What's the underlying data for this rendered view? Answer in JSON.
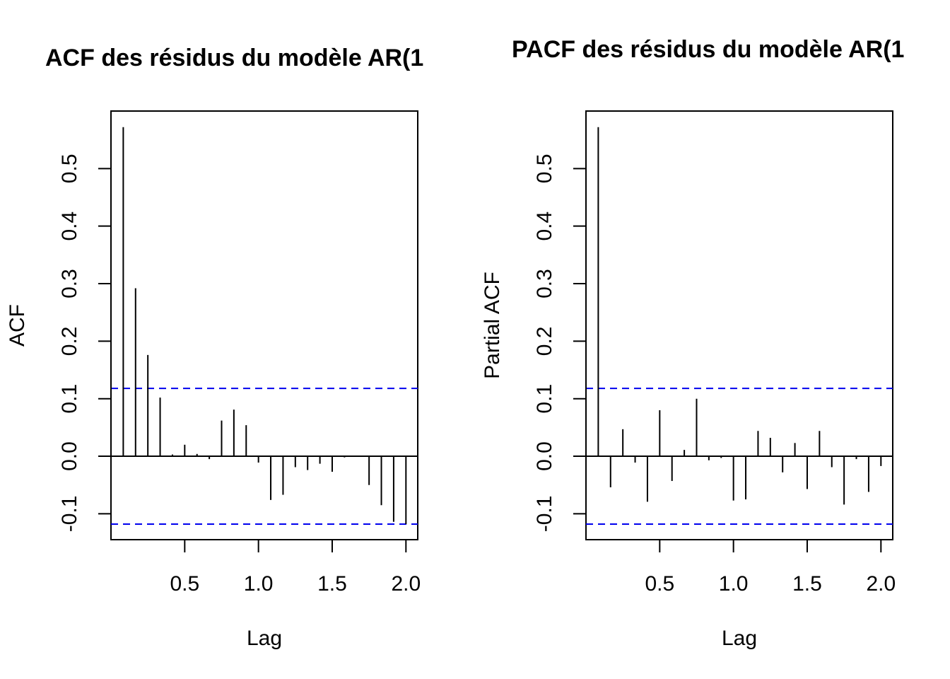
{
  "chart_data": [
    {
      "type": "bar",
      "title": "ACF des résidus du modèle AR(1",
      "xlabel": "Lag",
      "ylabel": "ACF",
      "xlim": [
        0,
        2.08
      ],
      "ylim": [
        -0.145,
        0.6
      ],
      "x_ticks": [
        0.5,
        1.0,
        1.5,
        2.0
      ],
      "x_tick_labels": [
        "0.5",
        "1.0",
        "1.5",
        "2.0"
      ],
      "y_ticks": [
        -0.1,
        0.0,
        0.1,
        0.2,
        0.3,
        0.4,
        0.5
      ],
      "y_tick_labels": [
        "-0.1",
        "0.0",
        "0.1",
        "0.2",
        "0.3",
        "0.4",
        "0.5"
      ],
      "confidence_bound": 0.118,
      "confidence_color": "#0000ee",
      "grid": false,
      "x": [
        0.0833,
        0.1667,
        0.25,
        0.3333,
        0.4167,
        0.5,
        0.5833,
        0.6667,
        0.75,
        0.8333,
        0.9167,
        1.0,
        1.0833,
        1.1667,
        1.25,
        1.3333,
        1.4167,
        1.5,
        1.5833,
        1.6667,
        1.75,
        1.8333,
        1.9167,
        2.0
      ],
      "values": [
        0.572,
        0.292,
        0.176,
        0.102,
        0.003,
        0.02,
        0.004,
        -0.005,
        0.062,
        0.081,
        0.054,
        -0.011,
        -0.076,
        -0.067,
        -0.019,
        -0.024,
        -0.013,
        -0.027,
        -0.002,
        -0.001,
        -0.05,
        -0.085,
        -0.114,
        -0.118
      ]
    },
    {
      "type": "bar",
      "title": "PACF des résidus du modèle AR(1",
      "xlabel": "Lag",
      "ylabel": "Partial ACF",
      "xlim": [
        0,
        2.08
      ],
      "ylim": [
        -0.145,
        0.6
      ],
      "x_ticks": [
        0.5,
        1.0,
        1.5,
        2.0
      ],
      "x_tick_labels": [
        "0.5",
        "1.0",
        "1.5",
        "2.0"
      ],
      "y_ticks": [
        -0.1,
        0.0,
        0.1,
        0.2,
        0.3,
        0.4,
        0.5
      ],
      "y_tick_labels": [
        "-0.1",
        "0.0",
        "0.1",
        "0.2",
        "0.3",
        "0.4",
        "0.5"
      ],
      "confidence_bound": 0.118,
      "confidence_color": "#0000ee",
      "grid": false,
      "x": [
        0.0833,
        0.1667,
        0.25,
        0.3333,
        0.4167,
        0.5,
        0.5833,
        0.6667,
        0.75,
        0.8333,
        0.9167,
        1.0,
        1.0833,
        1.1667,
        1.25,
        1.3333,
        1.4167,
        1.5,
        1.5833,
        1.6667,
        1.75,
        1.8333,
        1.9167,
        2.0
      ],
      "values": [
        0.572,
        -0.054,
        0.047,
        -0.011,
        -0.079,
        0.08,
        -0.043,
        0.011,
        0.1,
        -0.007,
        -0.003,
        -0.077,
        -0.075,
        0.044,
        0.032,
        -0.028,
        0.023,
        -0.057,
        0.044,
        -0.019,
        -0.084,
        -0.005,
        -0.062,
        -0.017
      ]
    }
  ]
}
